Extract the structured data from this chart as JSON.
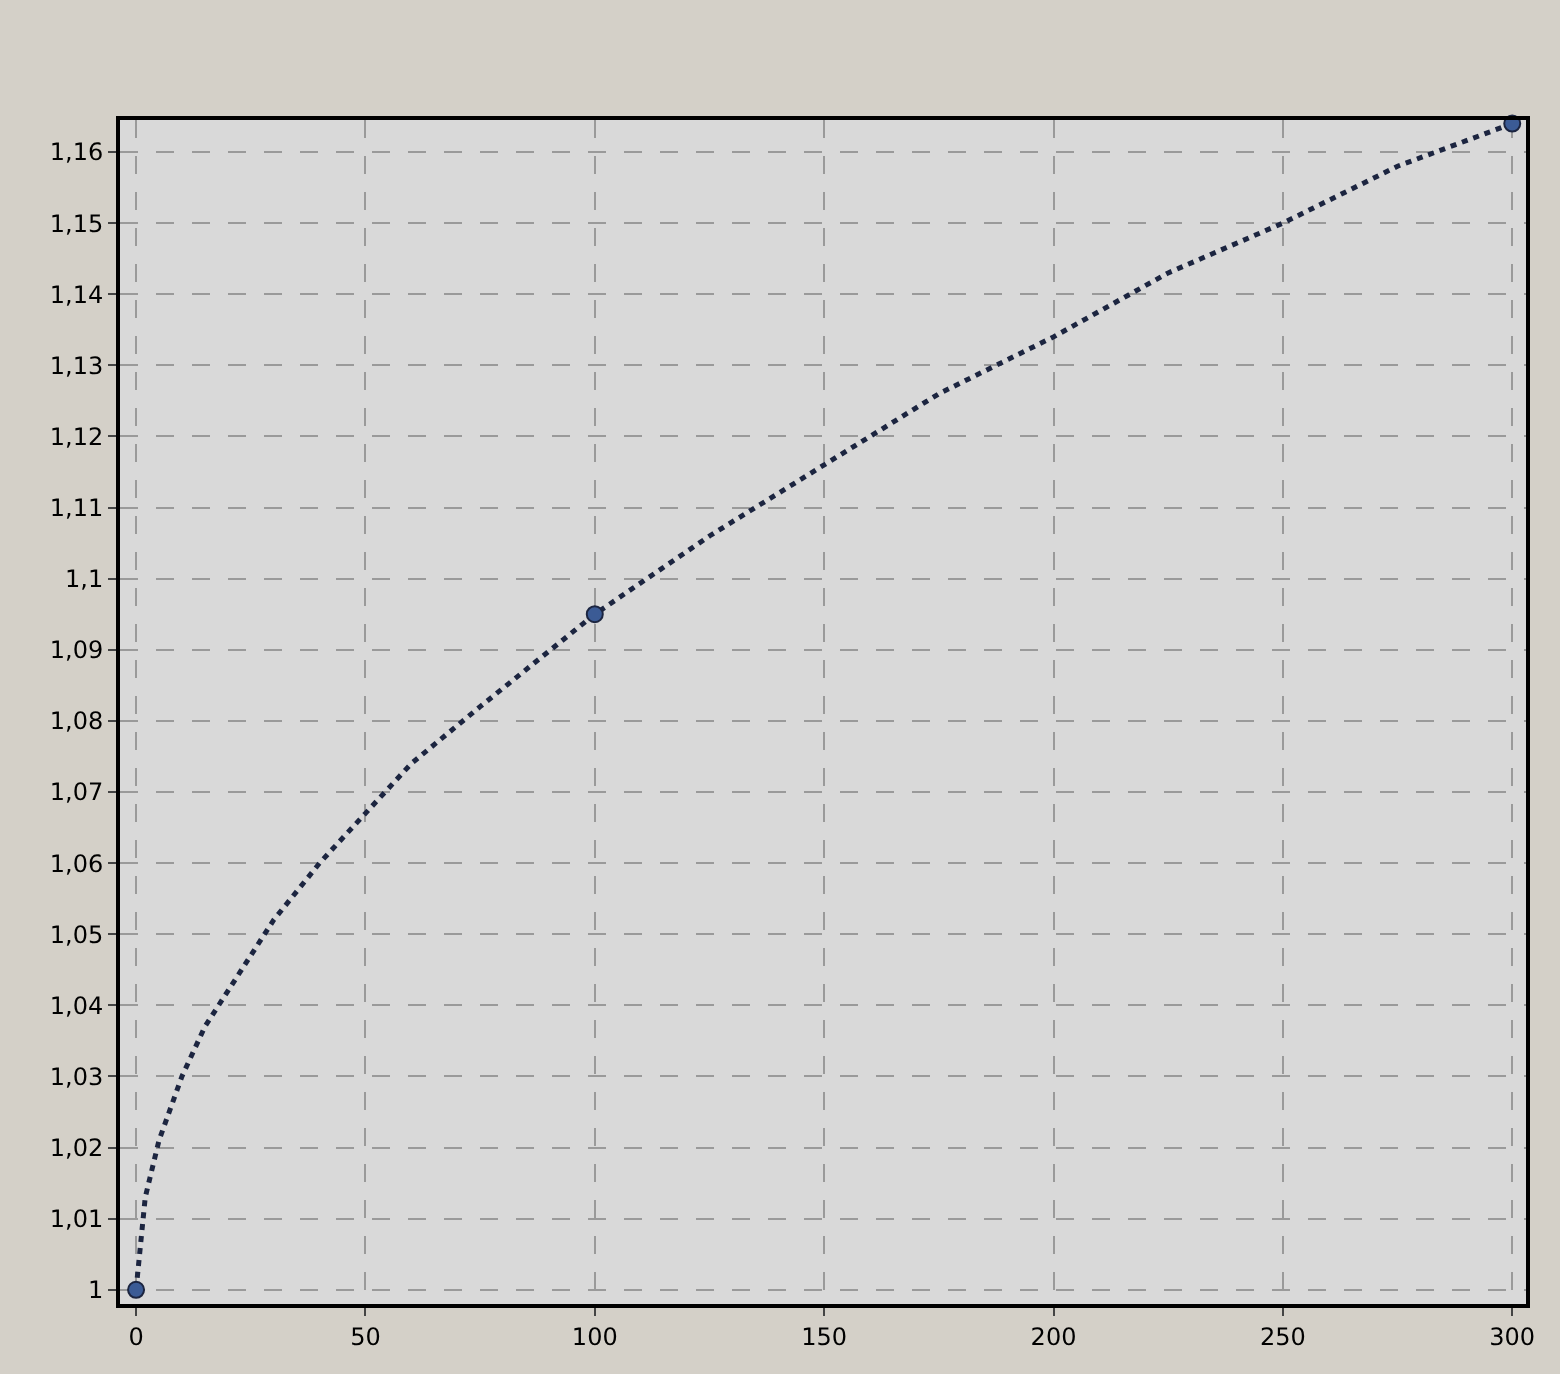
{
  "chart_data": {
    "type": "line",
    "series": [
      {
        "type": "line",
        "color": "#1c2540",
        "line_style": "dotted",
        "marker": "none",
        "x": [
          0,
          2,
          5,
          10,
          15,
          20,
          30,
          40,
          50,
          60,
          75,
          100,
          125,
          150,
          175,
          200,
          225,
          250,
          275,
          300
        ],
        "values": [
          1.0,
          1.013,
          1.021,
          1.03,
          1.037,
          1.042,
          1.052,
          1.06,
          1.067,
          1.074,
          1.082,
          1.095,
          1.106,
          1.116,
          1.126,
          1.134,
          1.143,
          1.15,
          1.158,
          1.164
        ]
      },
      {
        "type": "scatter",
        "color": "#3b5b95",
        "marker": "circle",
        "x": [
          0,
          100,
          300
        ],
        "values": [
          1.0,
          1.095,
          1.164
        ]
      }
    ],
    "xlim": [
      -3.5,
      303
    ],
    "xticks": [
      0,
      50,
      100,
      150,
      200,
      250,
      300
    ],
    "ylim": [
      0.998,
      1.1645
    ],
    "yticks": [
      1,
      {
        "value": 1.01,
        "label": "1,01"
      },
      {
        "value": 1.02,
        "label": "1,02"
      },
      {
        "value": 1.03,
        "label": "1,03"
      },
      {
        "value": 1.04,
        "label": "1,04"
      },
      {
        "value": 1.05,
        "label": "1,05"
      },
      {
        "value": 1.06,
        "label": "1,06"
      },
      {
        "value": 1.07,
        "label": "1,07"
      },
      {
        "value": 1.08,
        "label": "1,08"
      },
      {
        "value": 1.09,
        "label": "1,09"
      },
      {
        "value": 1.1,
        "label": "1,1"
      },
      {
        "value": 1.11,
        "label": "1,11"
      },
      {
        "value": 1.12,
        "label": "1,12"
      },
      {
        "value": 1.13,
        "label": "1,13"
      },
      {
        "value": 1.14,
        "label": "1,14"
      },
      {
        "value": 1.15,
        "label": "1,15"
      },
      {
        "value": 1.16,
        "label": "1,16"
      }
    ],
    "grid": true
  }
}
